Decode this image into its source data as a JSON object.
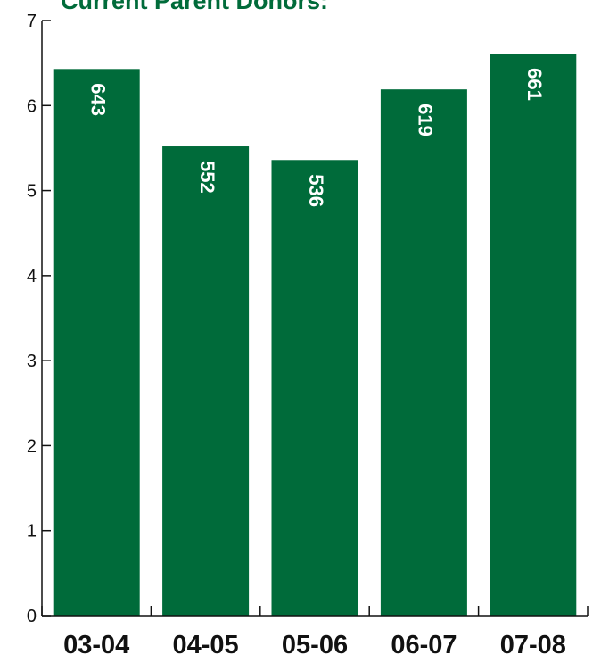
{
  "chart_data": {
    "type": "bar",
    "title": "Current Parent Donors:",
    "categories": [
      "03-04",
      "04-05",
      "05-06",
      "06-07",
      "07-08"
    ],
    "values": [
      6.43,
      5.52,
      5.36,
      6.19,
      6.61
    ],
    "data_labels": [
      "643",
      "552",
      "536",
      "619",
      "661"
    ],
    "ylim": [
      0,
      7
    ],
    "yticks": [
      0,
      1,
      2,
      3,
      4,
      5,
      6,
      7
    ],
    "xlabel": "",
    "ylabel": "",
    "grid": false,
    "legend": "none",
    "bar_color": "#006b3a",
    "title_color": "#006b3a"
  }
}
